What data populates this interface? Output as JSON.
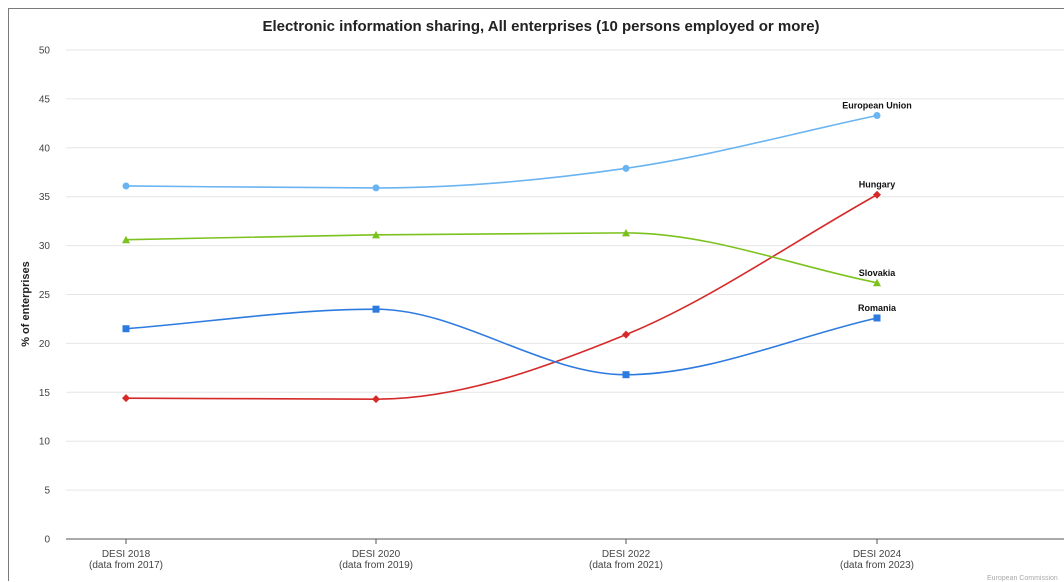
{
  "chart_data": {
    "type": "line",
    "title": "Electronic information sharing, All enterprises (10 persons employed or more)",
    "xlabel": "",
    "ylabel": "% of enterprises",
    "ylim": [
      0,
      50
    ],
    "yticks": [
      0,
      5,
      10,
      15,
      20,
      25,
      30,
      35,
      40,
      45,
      50
    ],
    "grid": true,
    "legend": "inline labels at last point",
    "categories": [
      [
        "DESI 2018",
        "(data from 2017)"
      ],
      [
        "DESI 2020",
        "(data from 2019)"
      ],
      [
        "DESI 2022",
        "(data from 2021)"
      ],
      [
        "DESI 2024",
        "(data from 2023)"
      ]
    ],
    "series": [
      {
        "name": "European Union",
        "color": "#6ab4f2",
        "marker": "circle",
        "values": [
          36.1,
          35.9,
          37.9,
          43.3
        ]
      },
      {
        "name": "Hungary",
        "color": "#d62a2a",
        "marker": "diamond",
        "values": [
          14.4,
          14.3,
          20.9,
          35.2
        ]
      },
      {
        "name": "Slovakia",
        "color": "#7cc21e",
        "marker": "triangle",
        "values": [
          30.6,
          31.1,
          31.3,
          26.2
        ]
      },
      {
        "name": "Romania",
        "color": "#2d7be0",
        "marker": "square",
        "values": [
          21.5,
          23.5,
          16.8,
          22.6
        ]
      }
    ],
    "credit": "European Commission"
  }
}
